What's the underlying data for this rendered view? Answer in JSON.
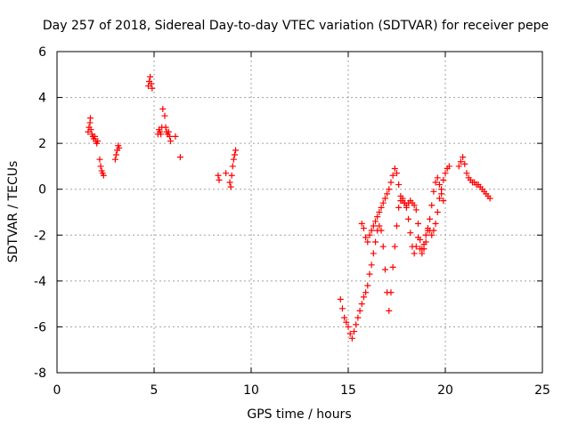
{
  "chart_data": {
    "type": "scatter",
    "title": "Day 257 of 2018, Sidereal Day-to-day VTEC variation (SDTVAR) for receiver pepe",
    "xlabel": "GPS time / hours",
    "ylabel": "SDTVAR / TECUs",
    "xlim": [
      0,
      25
    ],
    "ylim": [
      -8,
      6
    ],
    "xticks": [
      0,
      5,
      10,
      15,
      20,
      25
    ],
    "yticks": [
      -8,
      -6,
      -4,
      -2,
      0,
      2,
      4,
      6
    ],
    "grid": true,
    "marker": "+",
    "color": "#ff0000",
    "series": [
      {
        "name": "SDTVAR",
        "x": [
          1.6,
          1.65,
          1.7,
          1.72,
          1.75,
          1.8,
          1.85,
          1.9,
          1.95,
          2.0,
          2.05,
          2.1,
          2.2,
          2.25,
          2.3,
          2.35,
          2.4,
          3.0,
          3.05,
          3.1,
          3.15,
          3.2,
          4.7,
          4.75,
          4.8,
          4.85,
          4.9,
          5.2,
          5.25,
          5.3,
          5.35,
          5.4,
          5.45,
          5.55,
          5.6,
          5.65,
          5.7,
          5.75,
          5.8,
          5.85,
          6.1,
          6.35,
          8.3,
          8.35,
          8.7,
          8.9,
          8.95,
          9.0,
          9.05,
          9.1,
          9.15,
          9.2,
          14.6,
          14.7,
          14.8,
          14.9,
          15.0,
          15.1,
          15.2,
          15.3,
          15.4,
          15.5,
          15.6,
          15.7,
          15.8,
          15.9,
          16.0,
          16.1,
          16.2,
          16.3,
          16.4,
          16.5,
          16.6,
          16.7,
          16.8,
          16.9,
          17.0,
          17.1,
          17.2,
          17.3,
          17.4,
          17.5,
          17.6,
          17.7,
          17.8,
          17.9,
          18.0,
          18.1,
          18.2,
          18.3,
          18.4,
          18.5,
          18.6,
          18.7,
          18.8,
          18.9,
          19.0,
          19.1,
          19.2,
          19.3,
          19.4,
          19.5,
          19.6,
          19.7,
          19.8,
          19.9,
          20.0,
          20.1,
          20.2,
          15.7,
          15.8,
          15.9,
          16.0,
          16.1,
          16.2,
          16.3,
          16.4,
          16.5,
          16.6,
          16.7,
          16.8,
          16.9,
          17.0,
          17.1,
          17.2,
          17.3,
          17.4,
          17.5,
          17.6,
          17.7,
          17.8,
          17.9,
          18.0,
          18.1,
          18.2,
          18.3,
          18.4,
          18.5,
          18.6,
          18.7,
          18.8,
          18.9,
          19.0,
          19.1,
          19.2,
          19.3,
          19.4,
          19.5,
          19.6,
          19.7,
          19.8,
          19.9,
          20.7,
          20.8,
          20.9,
          21.0,
          21.1,
          21.2,
          21.3,
          21.4,
          21.5,
          21.6,
          21.7,
          21.8,
          21.9,
          22.0,
          22.1,
          22.2,
          22.3
        ],
        "y": [
          2.5,
          2.7,
          2.9,
          3.1,
          2.6,
          2.4,
          2.3,
          2.2,
          2.3,
          2.1,
          2.0,
          2.1,
          1.3,
          1.0,
          0.8,
          0.7,
          0.6,
          1.3,
          1.5,
          1.7,
          1.9,
          1.8,
          4.5,
          4.7,
          4.9,
          4.6,
          4.4,
          2.4,
          2.6,
          2.5,
          2.4,
          2.7,
          3.5,
          3.2,
          2.7,
          2.5,
          2.4,
          2.5,
          2.3,
          2.1,
          2.3,
          1.4,
          0.6,
          0.4,
          0.7,
          0.3,
          0.1,
          0.6,
          1.0,
          1.3,
          1.5,
          1.7,
          -4.8,
          -5.2,
          -5.6,
          -5.8,
          -6.0,
          -6.3,
          -6.5,
          -6.2,
          -5.9,
          -5.6,
          -5.3,
          -5.0,
          -4.7,
          -4.5,
          -4.2,
          -3.7,
          -3.3,
          -2.8,
          -2.3,
          -1.8,
          -1.6,
          -1.8,
          -2.5,
          -3.5,
          -4.5,
          -5.3,
          -4.5,
          -3.4,
          -2.5,
          -1.6,
          -0.8,
          -0.5,
          -0.4,
          -0.6,
          -0.7,
          -0.6,
          -0.5,
          -0.6,
          -0.7,
          -0.9,
          -1.5,
          -2.2,
          -2.6,
          -2.4,
          -2.0,
          -1.7,
          -1.8,
          -2.0,
          -1.8,
          -1.5,
          -1.0,
          -0.4,
          0.0,
          0.4,
          0.7,
          0.9,
          1.0,
          -1.5,
          -1.7,
          -2.1,
          -2.3,
          -2.0,
          -1.8,
          -1.6,
          -1.4,
          -1.2,
          -1.0,
          -0.8,
          -0.6,
          -0.4,
          -0.2,
          0.0,
          0.3,
          0.6,
          0.9,
          0.7,
          0.2,
          -0.3,
          -0.5,
          -0.6,
          -0.8,
          -1.3,
          -1.9,
          -2.5,
          -2.8,
          -2.5,
          -2.1,
          -2.6,
          -2.8,
          -2.6,
          -2.3,
          -1.8,
          -1.3,
          -0.7,
          -0.1,
          0.3,
          0.5,
          0.2,
          -0.2,
          -0.5,
          1.0,
          1.2,
          1.4,
          1.1,
          0.7,
          0.5,
          0.4,
          0.3,
          0.3,
          0.2,
          0.2,
          0.1,
          0.0,
          -0.1,
          -0.2,
          -0.3,
          -0.4
        ]
      }
    ]
  }
}
